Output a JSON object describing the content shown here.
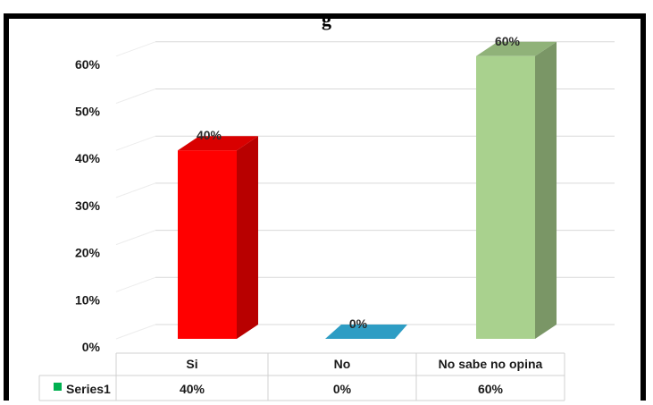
{
  "chart_data": {
    "type": "bar",
    "categories": [
      "Si",
      "No",
      "No sabe no opina"
    ],
    "series": [
      {
        "name": "Series1",
        "values": [
          40,
          0,
          60
        ],
        "data_labels": [
          "40%",
          "0%",
          "60%"
        ],
        "colors": [
          "#ff0000",
          "#2e9dc4",
          "#a9d18e"
        ]
      }
    ],
    "y_ticks": [
      "0%",
      "10%",
      "20%",
      "30%",
      "40%",
      "50%",
      "60%"
    ],
    "ylim": [
      0,
      65
    ],
    "grid": true,
    "data_table": {
      "legend_label": "Series1",
      "legend_color": "#00b050",
      "row": [
        "40%",
        "0%",
        "60%"
      ]
    }
  }
}
